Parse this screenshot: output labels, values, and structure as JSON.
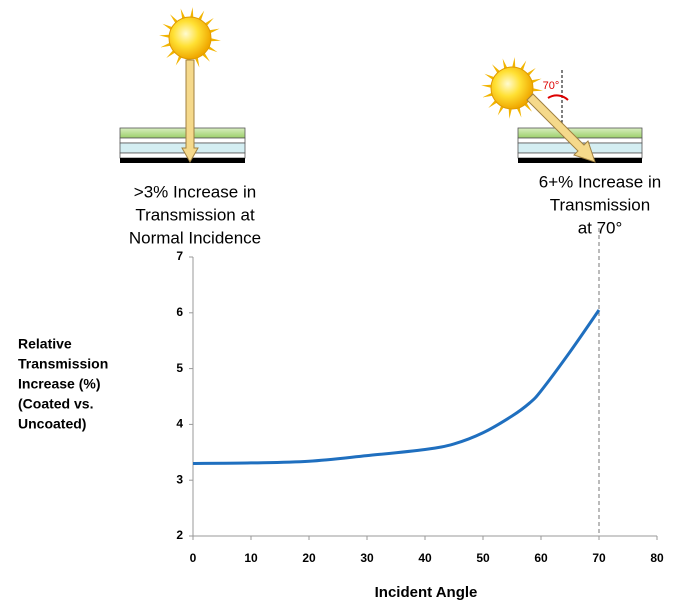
{
  "chart_data": {
    "type": "line",
    "x_label": "Incident Angle",
    "y_label": [
      "Relative",
      "Transmission",
      "Increase (%)",
      "(Coated vs.",
      "Uncoated)"
    ],
    "annotations": [
      {
        "lines": [
          ">3% Increase in",
          "Transmission   at",
          "Normal Incidence"
        ]
      },
      {
        "lines": [
          "6+% Increase in",
          "Transmission",
          "at  70°"
        ]
      }
    ],
    "angle_label": "70°",
    "x": [
      0,
      10,
      20,
      30,
      40,
      45,
      50,
      55,
      58,
      60,
      65,
      70
    ],
    "values": [
      3.3,
      3.31,
      3.34,
      3.44,
      3.55,
      3.65,
      3.85,
      4.15,
      4.38,
      4.6,
      5.3,
      6.05
    ],
    "color": "#1f6fbf",
    "xlim": [
      0,
      80
    ],
    "xticks": [
      0,
      10,
      20,
      30,
      40,
      50,
      60,
      70,
      80
    ],
    "ylim": [
      2,
      7
    ],
    "yticks": [
      2,
      3,
      4,
      5,
      6,
      7
    ]
  }
}
